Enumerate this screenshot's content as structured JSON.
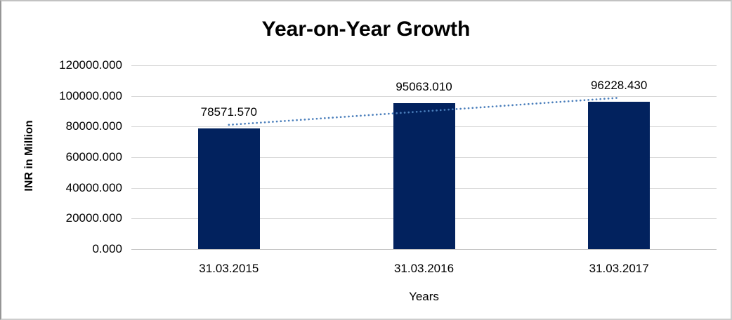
{
  "chart_data": {
    "type": "bar",
    "title": "Year-on-Year Growth",
    "xlabel": "Years",
    "ylabel": "INR in Million",
    "categories": [
      "31.03.2015",
      "31.03.2016",
      "31.03.2017"
    ],
    "values": [
      78571.57,
      95063.01,
      96228.43
    ],
    "data_labels": [
      "78571.570",
      "95063.010",
      "96228.430"
    ],
    "y_ticks": [
      0,
      20000,
      40000,
      60000,
      80000,
      100000,
      120000
    ],
    "y_tick_labels": [
      "0.000",
      "20000.000",
      "40000.000",
      "60000.000",
      "80000.000",
      "100000.000",
      "120000.000"
    ],
    "ylim": [
      0,
      120000
    ],
    "grid": true,
    "legend_position": "none",
    "trendline": {
      "kind": "linear",
      "style": "dotted"
    },
    "colors": {
      "bar": "#02225e",
      "trendline": "#4a7ebb",
      "gridline": "#d9d9d9",
      "axis_line": "#c6c6c6",
      "text": "#000000",
      "background": "#ffffff"
    }
  }
}
